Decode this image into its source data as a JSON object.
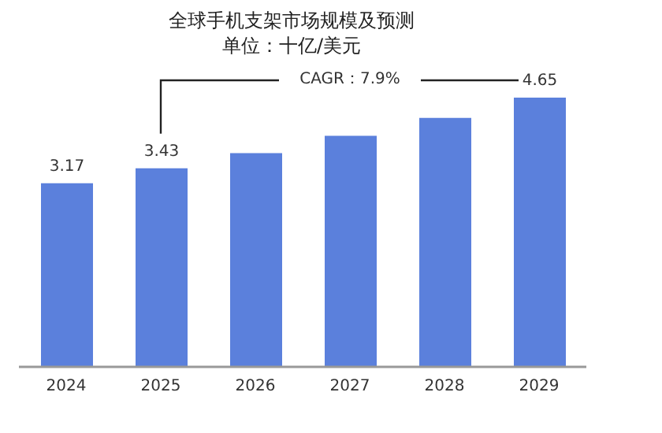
{
  "chart_data": {
    "type": "bar",
    "title": "全球手机支架市场规模及预测",
    "subtitle": "单位：十亿/美元",
    "categories": [
      "2024",
      "2025",
      "2026",
      "2027",
      "2028",
      "2029"
    ],
    "values": [
      3.17,
      3.43,
      3.69,
      3.99,
      4.3,
      4.65
    ],
    "value_labels": [
      "3.17",
      "3.43",
      null,
      null,
      null,
      "4.65"
    ],
    "color": "#5b80dc",
    "annotations": [
      "CAGR：7.9%"
    ]
  }
}
